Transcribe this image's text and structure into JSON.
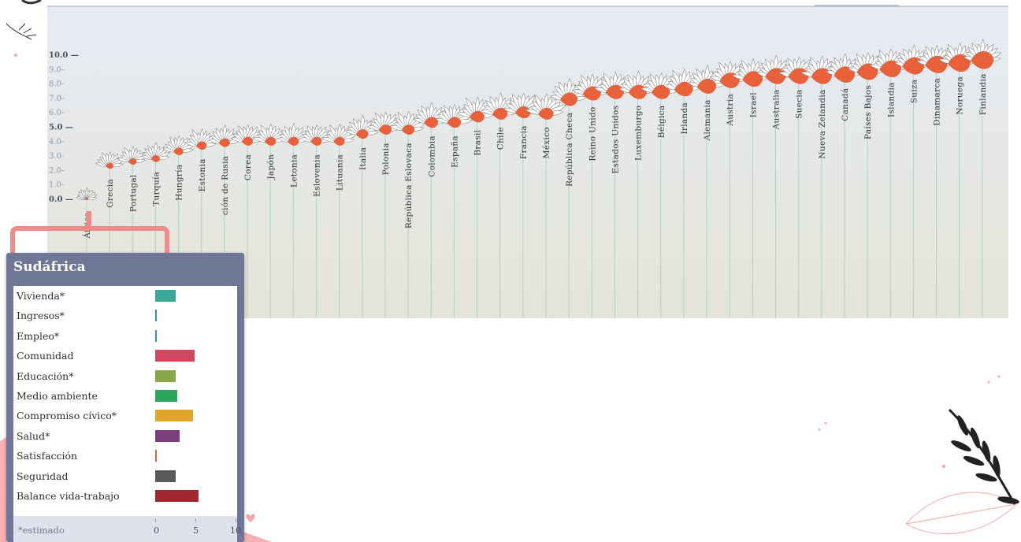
{
  "chart_data": {
    "type": "bar",
    "title": "",
    "xlabel": "",
    "ylabel": "",
    "y_ticks": [
      "0.0",
      "1.0",
      "2.0",
      "3.0",
      "4.0",
      "5.0",
      "6.0",
      "7.0",
      "8.0",
      "9.0",
      "10.0"
    ],
    "ylim": [
      0,
      10
    ],
    "categories": [
      "Sudáfrica",
      "Grecia",
      "Portugal",
      "Turquía",
      "Hungría",
      "Estonia",
      "Federación de Rusia",
      "Corea",
      "Japón",
      "Letonia",
      "Eslovenia",
      "Lituania",
      "Italia",
      "Polonia",
      "República Eslovaca",
      "Colombia",
      "España",
      "Brasil",
      "Chile",
      "Francia",
      "México",
      "República Checa",
      "Reino Unido",
      "Estados Unidos",
      "Luxemburgo",
      "Bélgica",
      "Irlanda",
      "Alemania",
      "Austria",
      "Israel",
      "Australia",
      "Suecia",
      "Nueva Zelandia",
      "Canadá",
      "Países Bajos",
      "Islandia",
      "Suiza",
      "Dinamarca",
      "Noruega",
      "Finlandia"
    ],
    "values": [
      0.0,
      2.3,
      2.6,
      2.8,
      3.3,
      3.7,
      3.9,
      4.0,
      4.0,
      4.0,
      4.0,
      4.0,
      4.5,
      4.8,
      4.8,
      5.3,
      5.3,
      5.7,
      5.9,
      6.0,
      5.9,
      6.9,
      7.3,
      7.4,
      7.4,
      7.4,
      7.6,
      7.8,
      8.2,
      8.3,
      8.5,
      8.5,
      8.5,
      8.6,
      8.8,
      9.0,
      9.2,
      9.3,
      9.4,
      9.6
    ],
    "displayed_labels": [
      "África",
      "Grecia",
      "Portugal",
      "Turquía",
      "Hungría",
      "Estonia",
      "ción de Rusia",
      "Corea",
      "Japón",
      "Letonia",
      "Eslovenia",
      "Lituania",
      "Italia",
      "Polonia",
      "República Eslovaca",
      "Colombia",
      "España",
      "Brasil",
      "Chile",
      "Francia",
      "México",
      "República Checa",
      "Reino Unido",
      "Estados Unidos",
      "Luxemburgo",
      "Bélgica",
      "Irlanda",
      "Alemania",
      "Austria",
      "Israel",
      "Australia",
      "Suecia",
      "Nueva Zelandia",
      "Canadá",
      "Países Bajos",
      "Islandia",
      "Suiza",
      "Dinamarca",
      "Noruega",
      "Finlandia"
    ],
    "grid": false,
    "colors": {
      "petal_fill": "#ffffff",
      "petal_stroke": "#8a8a8a",
      "core": "#e8613b",
      "stem": "#a8d5c4",
      "bg_top": "#e7ebf4",
      "bg_bottom": "#e5e4d8"
    },
    "tooltip": {
      "title": "Sudáfrica",
      "footnote": "*estimado",
      "axis_ticks": [
        "0",
        "5",
        "10"
      ],
      "xlim": [
        0,
        10
      ],
      "indicators": [
        {
          "label": "Vivienda*",
          "value": 2.5,
          "color": "#3aa799"
        },
        {
          "label": "Ingresos*",
          "value": 0.2,
          "color": "#2f8fd0"
        },
        {
          "label": "Empleo*",
          "value": 0.1,
          "color": "#2f8fd0"
        },
        {
          "label": "Comunidad",
          "value": 4.9,
          "color": "#d0475f"
        },
        {
          "label": "Educación*",
          "value": 2.5,
          "color": "#87a944"
        },
        {
          "label": "Medio ambiente",
          "value": 2.7,
          "color": "#2aa75a"
        },
        {
          "label": "Compromiso cívico*",
          "value": 4.7,
          "color": "#dfa62a"
        },
        {
          "label": "Salud*",
          "value": 3.0,
          "color": "#7c3f7c"
        },
        {
          "label": "Satisfacción",
          "value": 0.1,
          "color": "#e8613b"
        },
        {
          "label": "Seguridad",
          "value": 2.5,
          "color": "#5a5a5a"
        },
        {
          "label": "Balance vida-trabajo",
          "value": 5.4,
          "color": "#a0282e"
        }
      ]
    }
  }
}
